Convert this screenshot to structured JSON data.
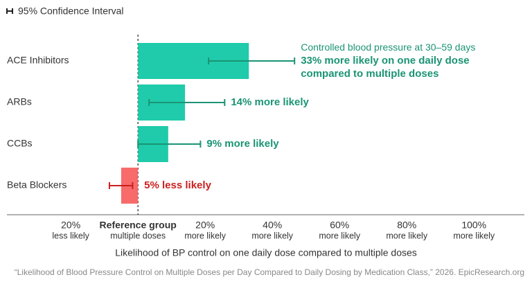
{
  "chart_data": {
    "type": "bar",
    "orientation": "horizontal",
    "legend_label": "95% Confidence Interval",
    "categories": [
      "ACE Inhibitors",
      "ARBs",
      "CCBs",
      "Beta Blockers"
    ],
    "values": [
      33,
      14,
      9,
      -5
    ],
    "value_labels": [
      "33% more likely on one daily dose compared to multiple doses",
      "14% more likely",
      "9% more likely",
      "5% less likely"
    ],
    "ci_low": [
      21,
      3.3,
      0,
      -8.5
    ],
    "ci_high": [
      46.6,
      25.8,
      18.6,
      -1.6
    ],
    "colors": [
      "#1fcbaa",
      "#1fcbaa",
      "#1fcbaa",
      "#f76b6b"
    ],
    "label_colors": [
      "#1a9474",
      "#1a9474",
      "#1a9474",
      "#cc1f1f"
    ],
    "annotation": "Controlled blood pressure at 30–59 days",
    "xlabel": "Likelihood of BP control on one daily dose compared to multiple doses",
    "xlim": [
      -39,
      115
    ],
    "xticks": [
      {
        "value": -20,
        "label": "20%",
        "sublabel": "less likely"
      },
      {
        "value": 0,
        "label": "Reference group",
        "sublabel": "multiple doses"
      },
      {
        "value": 20,
        "label": "20%",
        "sublabel": "more likely"
      },
      {
        "value": 40,
        "label": "40%",
        "sublabel": "more likely"
      },
      {
        "value": 60,
        "label": "60%",
        "sublabel": "more likely"
      },
      {
        "value": 80,
        "label": "80%",
        "sublabel": "more likely"
      },
      {
        "value": 100,
        "label": "100%",
        "sublabel": "more likely"
      }
    ],
    "source": "“Likelihood of Blood Pressure Control on Multiple Doses per Day Compared to Daily Dosing by Medication Class,” 2026. EpicResearch.org"
  }
}
